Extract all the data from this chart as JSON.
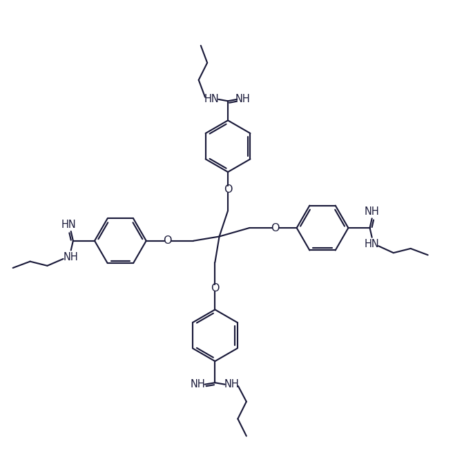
{
  "bg_color": "#ffffff",
  "line_color": "#1a1a3a",
  "line_width": 1.55,
  "font_size": 10.5,
  "figsize": [
    6.85,
    6.85
  ],
  "dpi": 100,
  "xlim": [
    -5,
    105
  ],
  "ylim": [
    -5,
    105
  ]
}
